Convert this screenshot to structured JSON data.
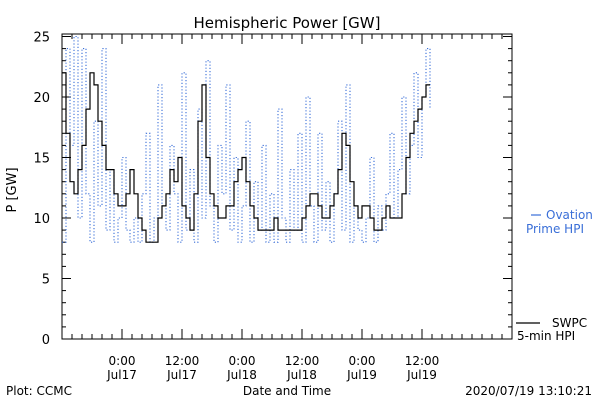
{
  "chart_data": {
    "type": "line",
    "title": "Hemispheric Power [GW]",
    "xlabel": "Date and Time",
    "ylabel": "P [GW]",
    "ylim": [
      0,
      26
    ],
    "xlim": [
      0,
      90
    ],
    "yticks": [
      0,
      5,
      10,
      15,
      20,
      25
    ],
    "xticks": [
      {
        "x": 12,
        "line1": "0:00",
        "line2": "Jul17"
      },
      {
        "x": 24,
        "line1": "12:00",
        "line2": "Jul17"
      },
      {
        "x": 36,
        "line1": "0:00",
        "line2": "Jul18"
      },
      {
        "x": 48,
        "line1": "12:00",
        "line2": "Jul18"
      },
      {
        "x": 60,
        "line1": "0:00",
        "line2": "Jul19"
      },
      {
        "x": 72,
        "line1": "12:00",
        "line2": "Jul19"
      }
    ],
    "grid": false,
    "legend_position": "right",
    "series": [
      {
        "name": "SWPC 5-min HPI",
        "color": "#000000",
        "style": "solid",
        "x": [
          0,
          0.8,
          1.6,
          2.4,
          3.2,
          4.0,
          4.8,
          5.6,
          6.4,
          7.2,
          8.0,
          8.8,
          9.6,
          10.4,
          11.2,
          12.0,
          12.8,
          13.6,
          14.4,
          15.2,
          16.0,
          16.8,
          17.6,
          18.4,
          19.2,
          20.0,
          20.8,
          21.6,
          22.4,
          23.2,
          24.0,
          24.8,
          25.6,
          26.4,
          27.2,
          28.0,
          28.8,
          29.6,
          30.4,
          31.2,
          32.0,
          32.8,
          33.6,
          34.4,
          35.2,
          36.0,
          36.8,
          37.6,
          38.4,
          39.2,
          40.0,
          40.8,
          41.6,
          42.4,
          43.2,
          44.0,
          44.8,
          45.6,
          46.4,
          47.2,
          48.0,
          48.8,
          49.6,
          50.4,
          51.2,
          52.0,
          52.8,
          53.6,
          54.4,
          55.2,
          56.0,
          56.8,
          57.6,
          58.4,
          59.2,
          60.0,
          60.8,
          61.6,
          62.4,
          63.2,
          64.0,
          64.8,
          65.6,
          66.4,
          67.2,
          68.0,
          68.8,
          69.6,
          70.4,
          71.2,
          72.0,
          72.8,
          73.6
        ],
        "y": [
          22,
          17,
          13,
          12,
          14,
          16,
          19,
          22,
          21,
          18,
          16,
          14,
          14,
          12,
          11,
          11,
          12,
          14,
          12,
          10,
          9,
          8,
          8,
          8,
          10,
          11,
          12,
          14,
          13,
          15,
          11,
          10,
          9,
          12,
          18,
          21,
          15,
          12,
          11,
          10,
          10,
          11,
          11,
          13,
          14,
          15,
          13,
          11,
          10,
          9,
          9,
          9,
          9,
          10,
          9,
          9,
          9,
          9,
          9,
          9,
          10,
          11,
          12,
          12,
          11,
          10,
          10,
          11,
          12,
          14,
          17,
          16,
          13,
          11,
          10,
          11,
          11,
          10,
          9,
          9,
          10,
          11,
          10,
          10,
          10,
          12,
          15,
          17,
          18,
          19,
          20,
          21,
          21
        ]
      },
      {
        "name": "Ovation Prime HPI",
        "color": "#3a6fd8",
        "style": "dotted",
        "x": [
          0,
          0.8,
          1.6,
          2.4,
          3.2,
          4.0,
          4.8,
          5.6,
          6.4,
          7.2,
          8.0,
          8.8,
          9.6,
          10.4,
          11.2,
          12.0,
          12.8,
          13.6,
          14.4,
          15.2,
          16.0,
          16.8,
          17.6,
          18.4,
          19.2,
          20.0,
          20.8,
          21.6,
          22.4,
          23.2,
          24.0,
          24.8,
          25.6,
          26.4,
          27.2,
          28.0,
          28.8,
          29.6,
          30.4,
          31.2,
          32.0,
          32.8,
          33.6,
          34.4,
          35.2,
          36.0,
          36.8,
          37.6,
          38.4,
          39.2,
          40.0,
          40.8,
          41.6,
          42.4,
          43.2,
          44.0,
          44.8,
          45.6,
          46.4,
          47.2,
          48.0,
          48.8,
          49.6,
          50.4,
          51.2,
          52.0,
          52.8,
          53.6,
          54.4,
          55.2,
          56.0,
          56.8,
          57.6,
          58.4,
          59.2,
          60.0,
          60.8,
          61.6,
          62.4,
          63.2,
          64.0,
          64.8,
          65.6,
          66.4,
          67.2,
          68.0,
          68.8,
          69.6,
          70.4,
          71.2,
          72.0,
          72.8,
          73.6
        ],
        "y": [
          8,
          24,
          16,
          25,
          10,
          24,
          12,
          8,
          18,
          11,
          24,
          9,
          14,
          8,
          10,
          15,
          9,
          8,
          10,
          8,
          12,
          17,
          8,
          10,
          21,
          11,
          9,
          16,
          12,
          8,
          22,
          9,
          14,
          8,
          19,
          10,
          23,
          11,
          8,
          16,
          12,
          21,
          9,
          15,
          8,
          11,
          18,
          8,
          13,
          9,
          16,
          8,
          12,
          8,
          19,
          10,
          8,
          14,
          9,
          17,
          8,
          20,
          11,
          8,
          17,
          9,
          13,
          8,
          12,
          18,
          9,
          21,
          8,
          11,
          9,
          8,
          10,
          15,
          8,
          11,
          9,
          12,
          17,
          10,
          14,
          20,
          12,
          16,
          22,
          15,
          20,
          24,
          19
        ]
      }
    ]
  },
  "legend": {
    "swpc_line1": "SWPC",
    "swpc_line2": "5-min HPI",
    "ovation_line1": "Ovation",
    "ovation_line2": "Prime HPI"
  },
  "footer": {
    "plot_credit": "Plot: CCMC",
    "timestamp": "2020/07/19 13:10:21"
  },
  "colors": {
    "swpc": "#000000",
    "ovation": "#3a6fd8"
  }
}
